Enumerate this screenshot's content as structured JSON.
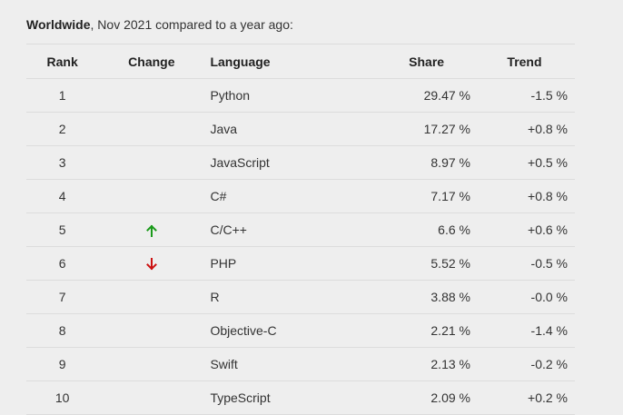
{
  "caption": {
    "scope": "Worldwide",
    "text": ", Nov 2021 compared to a year ago:"
  },
  "columns": {
    "rank": "Rank",
    "change": "Change",
    "language": "Language",
    "share": "Share",
    "trend": "Trend"
  },
  "colors": {
    "up": "#1a9a1a",
    "down": "#cc1111"
  },
  "rows": [
    {
      "rank": "1",
      "change": "",
      "language": "Python",
      "share": "29.47 %",
      "trend": "-1.5 %"
    },
    {
      "rank": "2",
      "change": "",
      "language": "Java",
      "share": "17.27 %",
      "trend": "+0.8 %"
    },
    {
      "rank": "3",
      "change": "",
      "language": "JavaScript",
      "share": "8.97 %",
      "trend": "+0.5 %"
    },
    {
      "rank": "4",
      "change": "",
      "language": "C#",
      "share": "7.17 %",
      "trend": "+0.8 %"
    },
    {
      "rank": "5",
      "change": "up-arrow-icon",
      "language": "C/C++",
      "share": "6.6 %",
      "trend": "+0.6 %"
    },
    {
      "rank": "6",
      "change": "down-arrow-icon",
      "language": "PHP",
      "share": "5.52 %",
      "trend": "-0.5 %"
    },
    {
      "rank": "7",
      "change": "",
      "language": "R",
      "share": "3.88 %",
      "trend": "-0.0 %"
    },
    {
      "rank": "8",
      "change": "",
      "language": "Objective-C",
      "share": "2.21 %",
      "trend": "-1.4 %"
    },
    {
      "rank": "9",
      "change": "",
      "language": "Swift",
      "share": "2.13 %",
      "trend": "-0.2 %"
    },
    {
      "rank": "10",
      "change": "",
      "language": "TypeScript",
      "share": "2.09 %",
      "trend": "+0.2 %"
    }
  ]
}
